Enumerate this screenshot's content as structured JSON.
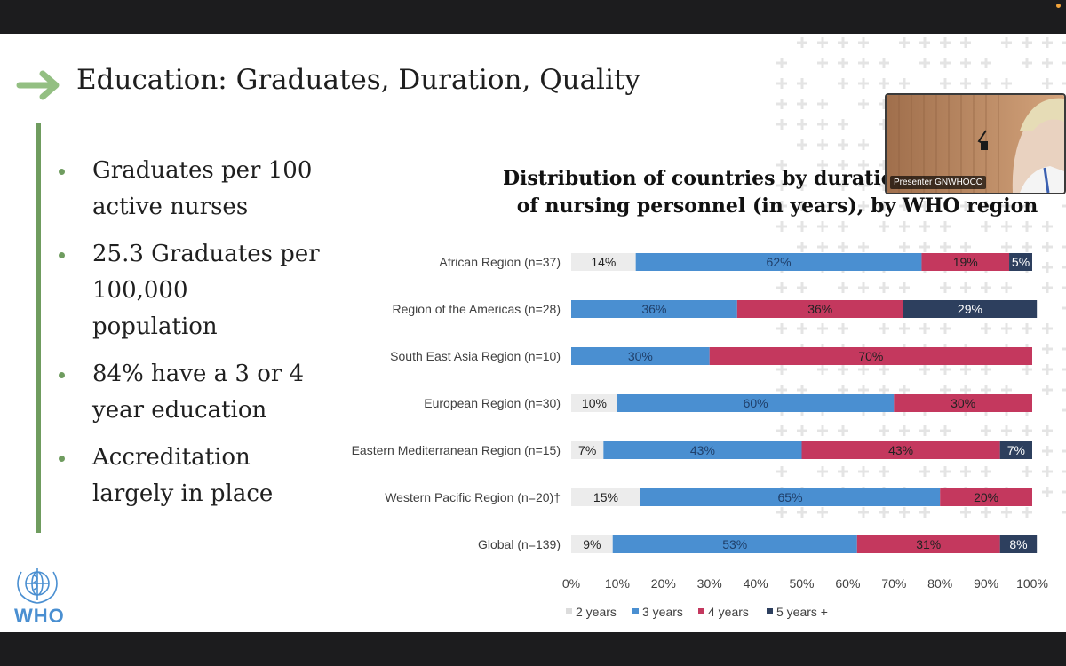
{
  "slide": {
    "title": "Education:  Graduates, Duration, Quality",
    "bullets": [
      "Graduates per 100 active nurses",
      "25.3 Graduates per 100,000 population",
      "84% have a 3 or 4 year education",
      "Accreditation largely in place"
    ],
    "logo_text": "WHO"
  },
  "webcam": {
    "label": "Presenter GNWHOCC"
  },
  "colors": {
    "accent_green": "#6f9c5f",
    "series_2y": "#ececec",
    "series_3y": "#4a8fd1",
    "series_4y": "#c4385e",
    "series_5y": "#2d3f5e"
  },
  "chart_data": {
    "type": "bar",
    "orientation": "horizontal",
    "stacked": true,
    "title_lines": [
      "Distribution of countries by duration of education",
      "of nursing personnel (in years), by WHO region"
    ],
    "categories": [
      "African Region (n=37)",
      "Region of the Americas (n=28)",
      "South East Asia Region (n=10)",
      "European Region (n=30)",
      "Eastern Mediterranean Region (n=15)",
      "Western Pacific Region (n=20)†",
      "Global (n=139)"
    ],
    "series": [
      {
        "name": "2 years",
        "values": [
          14,
          0,
          0,
          10,
          7,
          15,
          9
        ]
      },
      {
        "name": "3 years",
        "values": [
          62,
          36,
          30,
          60,
          43,
          65,
          53
        ]
      },
      {
        "name": "4 years",
        "values": [
          19,
          36,
          70,
          30,
          43,
          20,
          31
        ]
      },
      {
        "name": "5 years +",
        "values": [
          5,
          29,
          0,
          0,
          7,
          0,
          8
        ]
      }
    ],
    "x_ticks": [
      "0%",
      "10%",
      "20%",
      "30%",
      "40%",
      "50%",
      "60%",
      "70%",
      "80%",
      "90%",
      "100%"
    ],
    "xlim": [
      0,
      100
    ],
    "legend_position": "bottom",
    "data_labels": true
  }
}
